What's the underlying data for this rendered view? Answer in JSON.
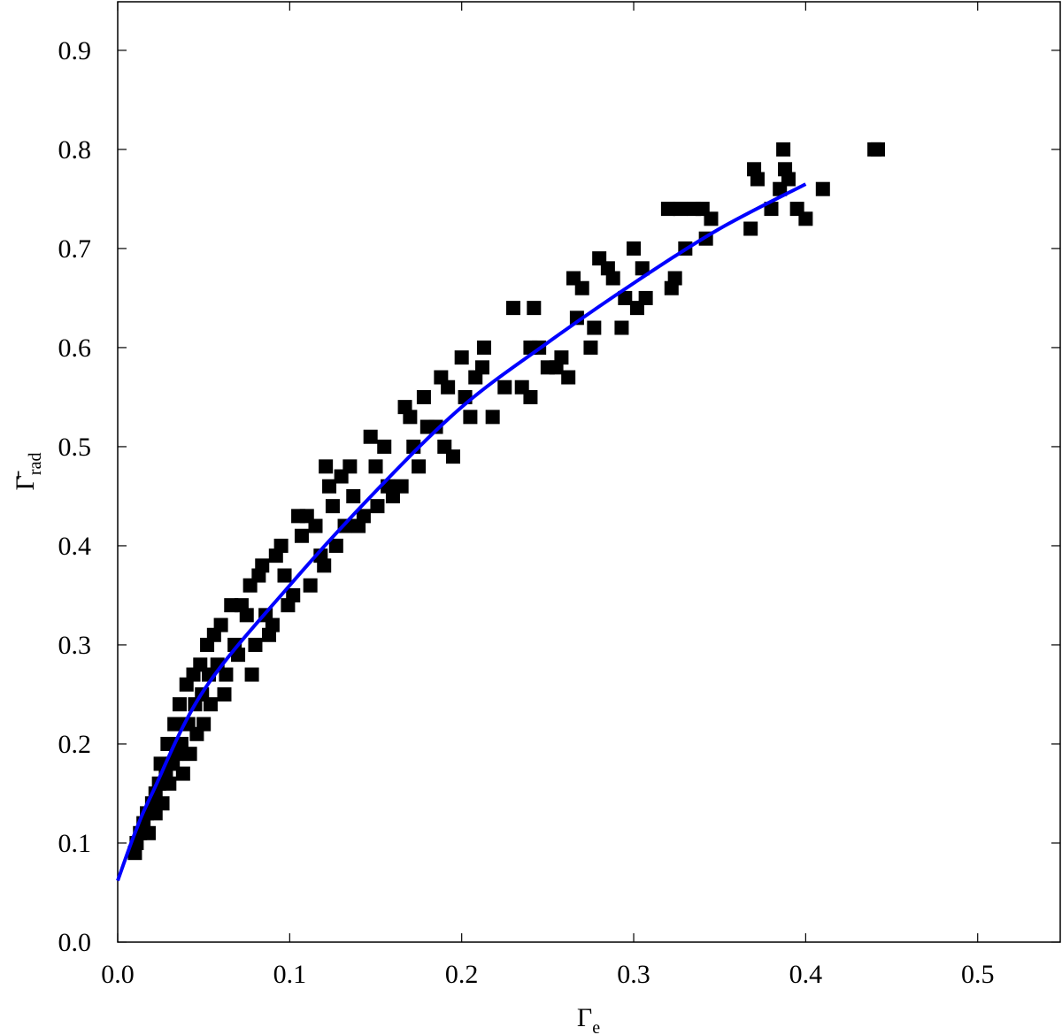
{
  "chart_data": {
    "type": "scatter",
    "xlabel": {
      "main": "Γ",
      "sub": "e"
    },
    "ylabel": {
      "main": "Γ̄",
      "sub": "rad"
    },
    "xlim": [
      0,
      0.548
    ],
    "ylim": [
      0,
      0.949
    ],
    "xticks": [
      {
        "value": 0,
        "label": "0.0"
      },
      0.1,
      0.2,
      0.3,
      0.4,
      0.5
    ],
    "yticks": [
      {
        "value": 0,
        "label": "0.0"
      },
      0.1,
      0.2,
      0.3,
      0.4,
      0.5,
      0.6,
      0.7,
      0.8,
      0.9
    ],
    "series": [
      {
        "type": "scatter",
        "color": "#000000",
        "x": [
          0.01,
          0.011,
          0.013,
          0.015,
          0.017,
          0.018,
          0.02,
          0.022,
          0.022,
          0.024,
          0.025,
          0.026,
          0.028,
          0.029,
          0.03,
          0.032,
          0.033,
          0.034,
          0.036,
          0.037,
          0.038,
          0.04,
          0.041,
          0.042,
          0.044,
          0.045,
          0.046,
          0.048,
          0.049,
          0.05,
          0.052,
          0.053,
          0.054,
          0.056,
          0.058,
          0.06,
          0.062,
          0.063,
          0.066,
          0.068,
          0.07,
          0.072,
          0.075,
          0.077,
          0.078,
          0.08,
          0.082,
          0.084,
          0.086,
          0.088,
          0.09,
          0.092,
          0.095,
          0.097,
          0.099,
          0.102,
          0.105,
          0.107,
          0.11,
          0.112,
          0.115,
          0.118,
          0.12,
          0.121,
          0.123,
          0.125,
          0.127,
          0.13,
          0.132,
          0.135,
          0.137,
          0.14,
          0.143,
          0.147,
          0.15,
          0.151,
          0.155,
          0.157,
          0.16,
          0.165,
          0.167,
          0.17,
          0.172,
          0.175,
          0.178,
          0.18,
          0.185,
          0.188,
          0.19,
          0.192,
          0.195,
          0.2,
          0.202,
          0.205,
          0.208,
          0.212,
          0.213,
          0.218,
          0.225,
          0.23,
          0.235,
          0.24,
          0.24,
          0.242,
          0.245,
          0.25,
          0.255,
          0.258,
          0.262,
          0.265,
          0.267,
          0.27,
          0.275,
          0.277,
          0.28,
          0.285,
          0.288,
          0.293,
          0.295,
          0.3,
          0.302,
          0.305,
          0.307,
          0.32,
          0.322,
          0.324,
          0.327,
          0.33,
          0.335,
          0.34,
          0.342,
          0.345,
          0.368,
          0.37,
          0.372,
          0.38,
          0.385,
          0.387,
          0.388,
          0.39,
          0.395,
          0.4,
          0.41,
          0.44,
          0.442
        ],
        "values": [
          0.09,
          0.1,
          0.11,
          0.12,
          0.13,
          0.11,
          0.14,
          0.15,
          0.13,
          0.16,
          0.18,
          0.14,
          0.17,
          0.2,
          0.16,
          0.18,
          0.22,
          0.19,
          0.24,
          0.2,
          0.17,
          0.26,
          0.22,
          0.19,
          0.27,
          0.24,
          0.21,
          0.28,
          0.25,
          0.22,
          0.3,
          0.27,
          0.24,
          0.31,
          0.28,
          0.32,
          0.25,
          0.27,
          0.34,
          0.3,
          0.29,
          0.34,
          0.33,
          0.36,
          0.27,
          0.3,
          0.37,
          0.38,
          0.33,
          0.31,
          0.32,
          0.39,
          0.4,
          0.37,
          0.34,
          0.35,
          0.43,
          0.41,
          0.43,
          0.36,
          0.42,
          0.39,
          0.38,
          0.48,
          0.46,
          0.44,
          0.4,
          0.47,
          0.42,
          0.48,
          0.45,
          0.42,
          0.43,
          0.51,
          0.48,
          0.44,
          0.5,
          0.46,
          0.45,
          0.46,
          0.54,
          0.53,
          0.5,
          0.48,
          0.55,
          0.52,
          0.52,
          0.57,
          0.5,
          0.56,
          0.49,
          0.59,
          0.55,
          0.53,
          0.57,
          0.58,
          0.6,
          0.53,
          0.56,
          0.64,
          0.56,
          0.6,
          0.55,
          0.64,
          0.6,
          0.58,
          0.58,
          0.59,
          0.57,
          0.67,
          0.63,
          0.66,
          0.6,
          0.62,
          0.69,
          0.68,
          0.67,
          0.62,
          0.65,
          0.7,
          0.64,
          0.68,
          0.65,
          0.74,
          0.66,
          0.67,
          0.74,
          0.7,
          0.74,
          0.74,
          0.71,
          0.73,
          0.72,
          0.78,
          0.77,
          0.74,
          0.76,
          0.8,
          0.78,
          0.77,
          0.74,
          0.73,
          0.76,
          0.8,
          0.8
        ]
      },
      {
        "type": "line",
        "color": "#0000ff",
        "x": [
          0,
          0.01,
          0.02,
          0.05,
          0.1,
          0.15,
          0.2,
          0.25,
          0.3,
          0.35,
          0.4
        ],
        "values": [
          0.062,
          0.11,
          0.15,
          0.254,
          0.36,
          0.455,
          0.54,
          0.605,
          0.665,
          0.72,
          0.765
        ]
      }
    ]
  }
}
